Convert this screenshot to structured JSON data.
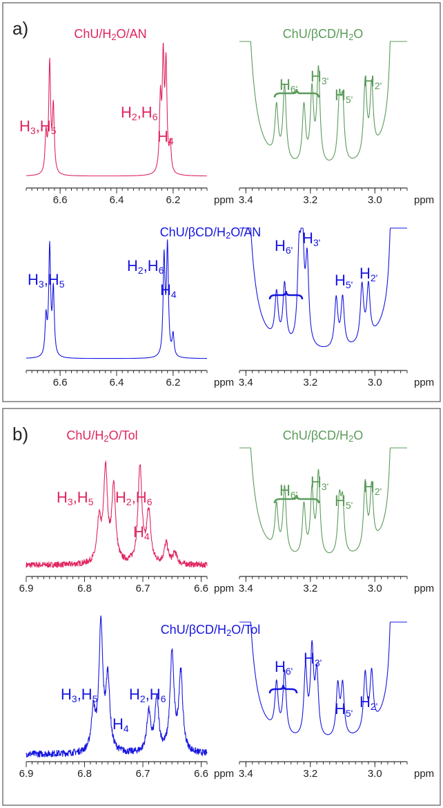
{
  "colors": {
    "red": "#e0245e",
    "green": "#5a9a5a",
    "blue": "#1515e0",
    "axis": "#333333"
  },
  "panels": [
    {
      "label": "a)",
      "titles": {
        "top_left": "ChU/H2O/AN",
        "top_right": "ChU/βCD/H2O",
        "bottom": "ChU/βCD/H2O/AN"
      },
      "unit": "ppm"
    },
    {
      "label": "b)",
      "titles": {
        "top_left": "ChU/H2O/Tol",
        "top_right": "ChU/βCD/H2O",
        "bottom": "ChU/βCD/H2O/Tol"
      },
      "unit": "ppm"
    }
  ],
  "chart_data": [
    {
      "id": "a-top-left",
      "type": "line",
      "color": "red",
      "xlim": [
        6.72,
        6.08
      ],
      "ticks": [
        "6.6",
        "6.4",
        "6.2"
      ],
      "tick_values": [
        6.6,
        6.4,
        6.2
      ],
      "unit": "ppm",
      "peaks": [
        {
          "x": 6.65,
          "h": 0.35
        },
        {
          "x": 6.637,
          "h": 1.0
        },
        {
          "x": 6.624,
          "h": 0.6
        },
        {
          "x": 6.245,
          "h": 0.65
        },
        {
          "x": 6.235,
          "h": 1.0
        },
        {
          "x": 6.225,
          "h": 0.95
        },
        {
          "x": 6.21,
          "h": 0.25
        }
      ],
      "baseline": 0.02,
      "labels": [
        {
          "main": "H",
          "sub": "3",
          "main2": ",H",
          "sub2": "5"
        },
        {
          "main": "H",
          "sub": "2",
          "main2": ",H",
          "sub2": "6"
        },
        {
          "main": "H",
          "sub": "4"
        }
      ]
    },
    {
      "id": "a-top-right",
      "type": "line",
      "color": "green",
      "xlim": [
        3.42,
        2.9
      ],
      "ticks": [
        "3.4",
        "3.2",
        "3.0"
      ],
      "tick_values": [
        3.4,
        3.2,
        3.0
      ],
      "unit": "ppm",
      "peaks": [
        {
          "x": 3.305,
          "h": 0.42
        },
        {
          "x": 3.28,
          "h": 0.62
        },
        {
          "x": 3.22,
          "h": 0.48
        },
        {
          "x": 3.195,
          "h": 0.6
        },
        {
          "x": 3.175,
          "h": 0.78
        },
        {
          "x": 3.11,
          "h": 0.5
        },
        {
          "x": 3.1,
          "h": 0.47
        },
        {
          "x": 3.03,
          "h": 0.62
        },
        {
          "x": 3.01,
          "h": 0.55
        },
        {
          "x": 2.95,
          "h": 0.5
        }
      ],
      "wings": true,
      "labels": [
        {
          "main": "H",
          "sub": "6'"
        },
        {
          "main": "H",
          "sub": "3'"
        },
        {
          "main": "H",
          "sub": "5'"
        },
        {
          "main": "H",
          "sub": "2'"
        }
      ]
    },
    {
      "id": "a-bottom-left",
      "type": "line",
      "color": "blue",
      "xlim": [
        6.72,
        6.08
      ],
      "ticks": [
        "6.6",
        "6.4",
        "6.2"
      ],
      "tick_values": [
        6.6,
        6.4,
        6.2
      ],
      "unit": "ppm",
      "peaks": [
        {
          "x": 6.65,
          "h": 0.35
        },
        {
          "x": 6.637,
          "h": 1.0
        },
        {
          "x": 6.624,
          "h": 0.6
        },
        {
          "x": 6.232,
          "h": 0.9
        },
        {
          "x": 6.22,
          "h": 1.0
        },
        {
          "x": 6.2,
          "h": 0.2
        }
      ],
      "baseline": 0.02,
      "labels": [
        {
          "main": "H",
          "sub": "3",
          "main2": ",H",
          "sub2": "5"
        },
        {
          "main": "H",
          "sub": "2",
          "main2": ",H",
          "sub2": "6"
        },
        {
          "main": "H",
          "sub": "4"
        }
      ]
    },
    {
      "id": "a-bottom-right",
      "type": "line",
      "color": "blue",
      "xlim": [
        3.42,
        2.9
      ],
      "ticks": [
        "3.4",
        "3.2",
        "3.0"
      ],
      "tick_values": [
        3.4,
        3.2,
        3.0
      ],
      "unit": "ppm",
      "peaks": [
        {
          "x": 3.305,
          "h": 0.4
        },
        {
          "x": 3.28,
          "h": 0.5
        },
        {
          "x": 3.235,
          "h": 0.7
        },
        {
          "x": 3.225,
          "h": 0.9
        },
        {
          "x": 3.21,
          "h": 0.7
        },
        {
          "x": 3.12,
          "h": 0.42
        },
        {
          "x": 3.1,
          "h": 0.42
        },
        {
          "x": 3.04,
          "h": 0.48
        },
        {
          "x": 3.02,
          "h": 0.45
        },
        {
          "x": 2.95,
          "h": 0.5
        }
      ],
      "wings": true,
      "labels": [
        {
          "main": "H",
          "sub": "6'"
        },
        {
          "main": "H",
          "sub": "3'"
        },
        {
          "main": "H",
          "sub": "5'"
        },
        {
          "main": "H",
          "sub": "2'"
        }
      ]
    },
    {
      "id": "b-top-left",
      "type": "line",
      "color": "red",
      "xlim": [
        6.9,
        6.59
      ],
      "ticks": [
        "6.9",
        "6.8",
        "6.7",
        "6.6"
      ],
      "tick_values": [
        6.9,
        6.8,
        6.7,
        6.6
      ],
      "unit": "ppm",
      "peaks": [
        {
          "x": 6.775,
          "h": 0.35
        },
        {
          "x": 6.764,
          "h": 0.8
        },
        {
          "x": 6.75,
          "h": 0.65
        },
        {
          "x": 6.705,
          "h": 0.85
        },
        {
          "x": 6.69,
          "h": 0.45
        },
        {
          "x": 6.66,
          "h": 0.18
        },
        {
          "x": 6.645,
          "h": 0.1
        }
      ],
      "baseline": 0.05,
      "noisy": true,
      "labels": [
        {
          "main": "H",
          "sub": "3",
          "main2": ",H",
          "sub2": "5"
        },
        {
          "main": "H",
          "sub": "2",
          "main2": ",H",
          "sub2": "6"
        },
        {
          "main": "H",
          "sub": "4"
        }
      ]
    },
    {
      "id": "b-top-right",
      "type": "line",
      "color": "green",
      "xlim": [
        3.42,
        2.9
      ],
      "ticks": [
        "3.4",
        "3.2",
        "3.0"
      ],
      "tick_values": [
        3.4,
        3.2,
        3.0
      ],
      "unit": "ppm",
      "peaks": [
        {
          "x": 3.305,
          "h": 0.42
        },
        {
          "x": 3.28,
          "h": 0.62
        },
        {
          "x": 3.22,
          "h": 0.48
        },
        {
          "x": 3.195,
          "h": 0.6
        },
        {
          "x": 3.175,
          "h": 0.78
        },
        {
          "x": 3.11,
          "h": 0.5
        },
        {
          "x": 3.1,
          "h": 0.47
        },
        {
          "x": 3.03,
          "h": 0.62
        },
        {
          "x": 3.01,
          "h": 0.55
        },
        {
          "x": 2.95,
          "h": 0.5
        }
      ],
      "wings": true,
      "labels": [
        {
          "main": "H",
          "sub": "6'"
        },
        {
          "main": "H",
          "sub": "3'"
        },
        {
          "main": "H",
          "sub": "5'"
        },
        {
          "main": "H",
          "sub": "2'"
        }
      ]
    },
    {
      "id": "b-bottom-left",
      "type": "line",
      "color": "blue",
      "xlim": [
        6.9,
        6.59
      ],
      "ticks": [
        "6.9",
        "6.8",
        "6.7",
        "6.6"
      ],
      "tick_values": [
        6.9,
        6.8,
        6.7,
        6.6
      ],
      "unit": "ppm",
      "peaks": [
        {
          "x": 6.785,
          "h": 0.3
        },
        {
          "x": 6.772,
          "h": 0.95
        },
        {
          "x": 6.76,
          "h": 0.55
        },
        {
          "x": 6.69,
          "h": 0.3
        },
        {
          "x": 6.676,
          "h": 0.4
        },
        {
          "x": 6.65,
          "h": 0.75
        },
        {
          "x": 6.635,
          "h": 0.6
        }
      ],
      "baseline": 0.02,
      "noisy": true,
      "labels": [
        {
          "main": "H",
          "sub": "3",
          "main2": ",H",
          "sub2": "5"
        },
        {
          "main": "H",
          "sub": "4"
        },
        {
          "main": "H",
          "sub": "2",
          "main2": ",H",
          "sub2": "6"
        }
      ]
    },
    {
      "id": "b-bottom-right",
      "type": "line",
      "color": "blue",
      "xlim": [
        3.42,
        2.9
      ],
      "ticks": [
        "3.4",
        "3.2",
        "3.0"
      ],
      "tick_values": [
        3.4,
        3.2,
        3.0
      ],
      "unit": "ppm",
      "peaks": [
        {
          "x": 3.305,
          "h": 0.42
        },
        {
          "x": 3.28,
          "h": 0.55
        },
        {
          "x": 3.215,
          "h": 0.6
        },
        {
          "x": 3.195,
          "h": 0.75
        },
        {
          "x": 3.18,
          "h": 0.55
        },
        {
          "x": 3.115,
          "h": 0.45
        },
        {
          "x": 3.1,
          "h": 0.45
        },
        {
          "x": 3.03,
          "h": 0.5
        },
        {
          "x": 3.01,
          "h": 0.47
        },
        {
          "x": 2.95,
          "h": 0.5
        }
      ],
      "wings": true,
      "labels": [
        {
          "main": "H",
          "sub": "6'"
        },
        {
          "main": "H",
          "sub": "3'"
        },
        {
          "main": "H",
          "sub": "5'"
        },
        {
          "main": "H",
          "sub": "2'"
        }
      ]
    }
  ]
}
